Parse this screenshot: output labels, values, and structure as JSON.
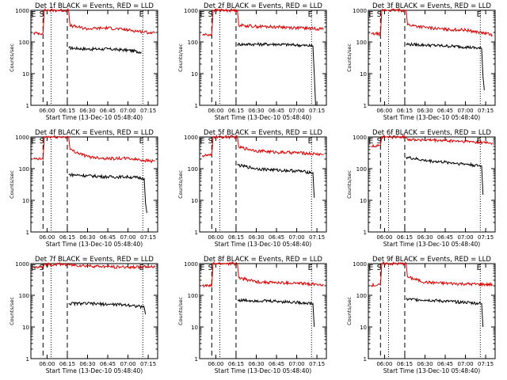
{
  "colors": {
    "events": "#000000",
    "lld": "#dd0000",
    "axis": "#000000"
  },
  "chart_data": [
    {
      "type": "line",
      "title": "Det 1f BLACK = Events, RED = LLD",
      "xlabel": "Start Time (13-Dec-10 05:48:40)",
      "ylabel": "Counts/sec",
      "xticks": [
        "06:00",
        "06:15",
        "06:30",
        "06:45",
        "07:00",
        "07:15"
      ],
      "yticks": [
        "1",
        "10",
        "100",
        "1000"
      ],
      "ylim": [
        1,
        1000
      ],
      "yscale": "log",
      "grid": false,
      "letters": [
        "E",
        "S",
        "E"
      ],
      "series": [
        {
          "x": [
            "06:16",
            "06:30",
            "06:45",
            "07:00",
            "07:10"
          ],
          "y": [
            65,
            60,
            60,
            55,
            48
          ]
        },
        {
          "x": [
            "05:50",
            "05:57",
            "05:58",
            "06:16",
            "06:17",
            "06:30",
            "06:45",
            "07:00",
            "07:20"
          ],
          "y": [
            190,
            190,
            1000,
            1000,
            330,
            260,
            280,
            240,
            190
          ]
        }
      ]
    },
    {
      "type": "line",
      "title": "Det 2f BLACK = Events, RED = LLD",
      "xlabel": "Start Time (13-Dec-10 05:48:40)",
      "ylabel": "Counts/sec",
      "xticks": [
        "06:00",
        "06:15",
        "06:30",
        "06:45",
        "07:00",
        "07:15"
      ],
      "yticks": [
        "1",
        "10",
        "100",
        "1000"
      ],
      "ylim": [
        1,
        1000
      ],
      "yscale": "log",
      "grid": false,
      "letters": [
        "E",
        "S",
        "E"
      ],
      "series": [
        {
          "x": [
            "06:16",
            "06:30",
            "06:45",
            "07:00",
            "07:12",
            "07:13",
            "07:14"
          ],
          "y": [
            85,
            85,
            85,
            80,
            75,
            10,
            1
          ]
        },
        {
          "x": [
            "05:50",
            "05:57",
            "05:58",
            "06:16",
            "06:17",
            "06:30",
            "06:45",
            "07:00",
            "07:20"
          ],
          "y": [
            170,
            170,
            1000,
            1000,
            340,
            310,
            300,
            280,
            260
          ]
        }
      ]
    },
    {
      "type": "line",
      "title": "Det 3f BLACK = Events, RED = LLD",
      "xlabel": "Start Time (13-Dec-10 05:48:40)",
      "ylabel": "Counts/sec",
      "xticks": [
        "06:00",
        "06:15",
        "06:30",
        "06:45",
        "07:00",
        "07:15"
      ],
      "yticks": [
        "1",
        "10",
        "100",
        "1000"
      ],
      "ylim": [
        1,
        1000
      ],
      "yscale": "log",
      "grid": false,
      "letters": [
        "E",
        "S",
        "E"
      ],
      "series": [
        {
          "x": [
            "06:16",
            "06:30",
            "06:45",
            "07:00",
            "07:12",
            "07:13",
            "07:14"
          ],
          "y": [
            85,
            80,
            75,
            70,
            62,
            8,
            3
          ]
        },
        {
          "x": [
            "05:50",
            "05:57",
            "05:58",
            "06:16",
            "06:17",
            "06:30",
            "06:45",
            "07:00",
            "07:20"
          ],
          "y": [
            180,
            180,
            1000,
            1000,
            350,
            290,
            250,
            240,
            170
          ]
        }
      ]
    },
    {
      "type": "line",
      "title": "Det 4f BLACK = Events, RED = LLD",
      "xlabel": "Start Time (13-Dec-10 05:48:40)",
      "ylabel": "Counts/sec",
      "xticks": [
        "06:00",
        "06:15",
        "06:30",
        "06:45",
        "07:00",
        "07:15"
      ],
      "yticks": [
        "1",
        "10",
        "100",
        "1000"
      ],
      "ylim": [
        1,
        1000
      ],
      "yscale": "log",
      "grid": false,
      "letters": [
        "E",
        "S",
        "E"
      ],
      "series": [
        {
          "x": [
            "06:16",
            "06:30",
            "06:45",
            "07:00",
            "07:12",
            "07:13",
            "07:14"
          ],
          "y": [
            65,
            60,
            55,
            55,
            50,
            8,
            4
          ]
        },
        {
          "x": [
            "05:50",
            "05:57",
            "05:58",
            "06:16",
            "06:17",
            "06:30",
            "06:45",
            "07:00",
            "07:20"
          ],
          "y": [
            200,
            200,
            1000,
            1000,
            400,
            240,
            210,
            210,
            170
          ]
        }
      ]
    },
    {
      "type": "line",
      "title": "Det 5f BLACK = Events, RED = LLD",
      "xlabel": "Start Time (13-Dec-10 05:48:40)",
      "ylabel": "Counts/sec",
      "xticks": [
        "06:00",
        "06:15",
        "06:30",
        "06:45",
        "07:00",
        "07:15"
      ],
      "yticks": [
        "1",
        "10",
        "100",
        "1000"
      ],
      "ylim": [
        1,
        1000
      ],
      "yscale": "log",
      "grid": false,
      "letters": [
        "E",
        "S",
        "E"
      ],
      "series": [
        {
          "x": [
            "06:16",
            "06:30",
            "06:45",
            "07:00",
            "07:12",
            "07:13"
          ],
          "y": [
            130,
            100,
            90,
            85,
            75,
            12
          ]
        },
        {
          "x": [
            "05:50",
            "05:57",
            "05:58",
            "06:16",
            "06:17",
            "06:30",
            "06:45",
            "07:00",
            "07:20"
          ],
          "y": [
            260,
            260,
            1000,
            1000,
            480,
            370,
            330,
            320,
            280
          ]
        }
      ]
    },
    {
      "type": "line",
      "title": "Det 6f BLACK = Events, RED = LLD",
      "xlabel": "Start Time (13-Dec-10 05:48:40)",
      "ylabel": "Counts/sec",
      "xticks": [
        "06:00",
        "06:15",
        "06:30",
        "06:45",
        "07:00",
        "07:15"
      ],
      "yticks": [
        "1",
        "10",
        "100",
        "1000"
      ],
      "ylim": [
        1,
        1000
      ],
      "yscale": "log",
      "grid": false,
      "letters": [
        "E",
        "S",
        "E"
      ],
      "series": [
        {
          "x": [
            "06:16",
            "06:30",
            "06:45",
            "07:00",
            "07:12",
            "07:13"
          ],
          "y": [
            230,
            180,
            160,
            140,
            120,
            15
          ]
        },
        {
          "x": [
            "05:50",
            "05:57",
            "05:58",
            "06:16",
            "06:17",
            "06:30",
            "06:45",
            "07:00",
            "07:20"
          ],
          "y": [
            500,
            560,
            1000,
            1000,
            850,
            800,
            760,
            720,
            650
          ]
        }
      ]
    },
    {
      "type": "line",
      "title": "Det 7f BLACK = Events, RED = LLD",
      "xlabel": "Start Time (13-Dec-10 05:48:40)",
      "ylabel": "Counts/sec",
      "xticks": [
        "06:00",
        "06:15",
        "06:30",
        "06:45",
        "07:00",
        "07:15"
      ],
      "yticks": [
        "1",
        "10",
        "100",
        "1000"
      ],
      "ylim": [
        1,
        1000
      ],
      "yscale": "log",
      "grid": false,
      "letters": [
        "E",
        "S",
        "E"
      ],
      "series": [
        {
          "x": [
            "06:16",
            "06:30",
            "06:45",
            "07:00",
            "07:12",
            "07:13"
          ],
          "y": [
            55,
            55,
            52,
            50,
            42,
            25
          ]
        },
        {
          "x": [
            "05:50",
            "05:57",
            "05:58",
            "06:16",
            "06:17",
            "06:30",
            "06:45",
            "07:00",
            "07:20"
          ],
          "y": [
            750,
            750,
            950,
            950,
            900,
            850,
            800,
            780,
            800
          ]
        }
      ]
    },
    {
      "type": "line",
      "title": "Det 8f BLACK = Events, RED = LLD",
      "xlabel": "Start Time (13-Dec-10 05:48:40)",
      "ylabel": "Counts/sec",
      "xticks": [
        "06:00",
        "06:15",
        "06:30",
        "06:45",
        "07:00",
        "07:15"
      ],
      "yticks": [
        "1",
        "10",
        "100",
        "1000"
      ],
      "ylim": [
        1,
        1000
      ],
      "yscale": "log",
      "grid": false,
      "letters": [
        "E",
        "S",
        "E"
      ],
      "series": [
        {
          "x": [
            "06:16",
            "06:30",
            "06:45",
            "07:00",
            "07:12",
            "07:13"
          ],
          "y": [
            70,
            68,
            65,
            60,
            55,
            10
          ]
        },
        {
          "x": [
            "05:50",
            "05:57",
            "05:58",
            "06:16",
            "06:17",
            "06:30",
            "06:45",
            "07:00",
            "07:20"
          ],
          "y": [
            200,
            200,
            1000,
            1000,
            360,
            270,
            250,
            240,
            220
          ]
        }
      ]
    },
    {
      "type": "line",
      "title": "Det 9f BLACK = Events, RED = LLD",
      "xlabel": "Start Time (13-Dec-10 05:48:40)",
      "ylabel": "Counts/sec",
      "xticks": [
        "06:00",
        "06:15",
        "06:30",
        "06:45",
        "07:00",
        "07:15"
      ],
      "yticks": [
        "1",
        "10",
        "100",
        "1000"
      ],
      "ylim": [
        1,
        1000
      ],
      "yscale": "log",
      "grid": false,
      "letters": [
        "E",
        "S",
        "E"
      ],
      "series": [
        {
          "x": [
            "06:16",
            "06:30",
            "06:45",
            "07:00",
            "07:12",
            "07:13"
          ],
          "y": [
            75,
            72,
            65,
            60,
            55,
            10
          ]
        },
        {
          "x": [
            "05:50",
            "05:57",
            "05:58",
            "06:16",
            "06:17",
            "06:30",
            "06:45",
            "07:00",
            "07:20"
          ],
          "y": [
            210,
            210,
            1000,
            1000,
            380,
            260,
            240,
            230,
            220
          ]
        }
      ]
    }
  ]
}
